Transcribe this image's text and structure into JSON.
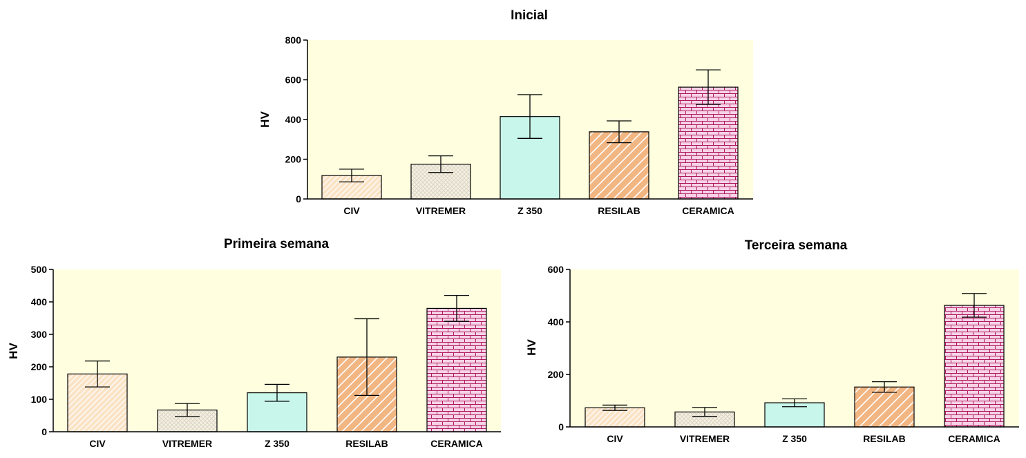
{
  "colors": {
    "plot_background": "#ffffe0",
    "CIV": "#fbe3c6",
    "VITREMER": "#f2eddf",
    "Z 350": "#c9f6ea",
    "RESILAB": "#f2b683",
    "CERAMICA": "#f6d3e6",
    "CERAMICA_lines": "#b0185f"
  },
  "chart_data": [
    {
      "type": "bar",
      "title": "Inicial",
      "ylabel": "HV",
      "xlabel": "",
      "ylim": [
        0,
        800
      ],
      "yticks": [
        0,
        200,
        400,
        600,
        800
      ],
      "categories": [
        "CIV",
        "VITREMER",
        "Z 350",
        "RESILAB",
        "CERAMICA"
      ],
      "values": [
        118,
        175,
        415,
        338,
        563
      ],
      "errors": [
        32,
        42,
        110,
        55,
        87
      ],
      "grid": false,
      "legend": "none"
    },
    {
      "type": "bar",
      "title": "Primeira semana",
      "ylabel": "HV",
      "xlabel": "",
      "ylim": [
        0,
        500
      ],
      "yticks": [
        0,
        100,
        200,
        300,
        400,
        500
      ],
      "categories": [
        "CIV",
        "VITREMER",
        "Z 350",
        "RESILAB",
        "CERAMICA"
      ],
      "values": [
        178,
        67,
        120,
        230,
        380
      ],
      "errors": [
        40,
        20,
        26,
        118,
        40
      ],
      "grid": false,
      "legend": "none"
    },
    {
      "type": "bar",
      "title": "Terceira semana",
      "ylabel": "HV",
      "xlabel": "",
      "ylim": [
        0,
        600
      ],
      "yticks": [
        0,
        200,
        400,
        600
      ],
      "categories": [
        "CIV",
        "VITREMER",
        "Z 350",
        "RESILAB",
        "CERAMICA"
      ],
      "values": [
        73,
        57,
        92,
        152,
        463
      ],
      "errors": [
        10,
        17,
        15,
        20,
        45
      ],
      "grid": false,
      "legend": "none"
    }
  ]
}
